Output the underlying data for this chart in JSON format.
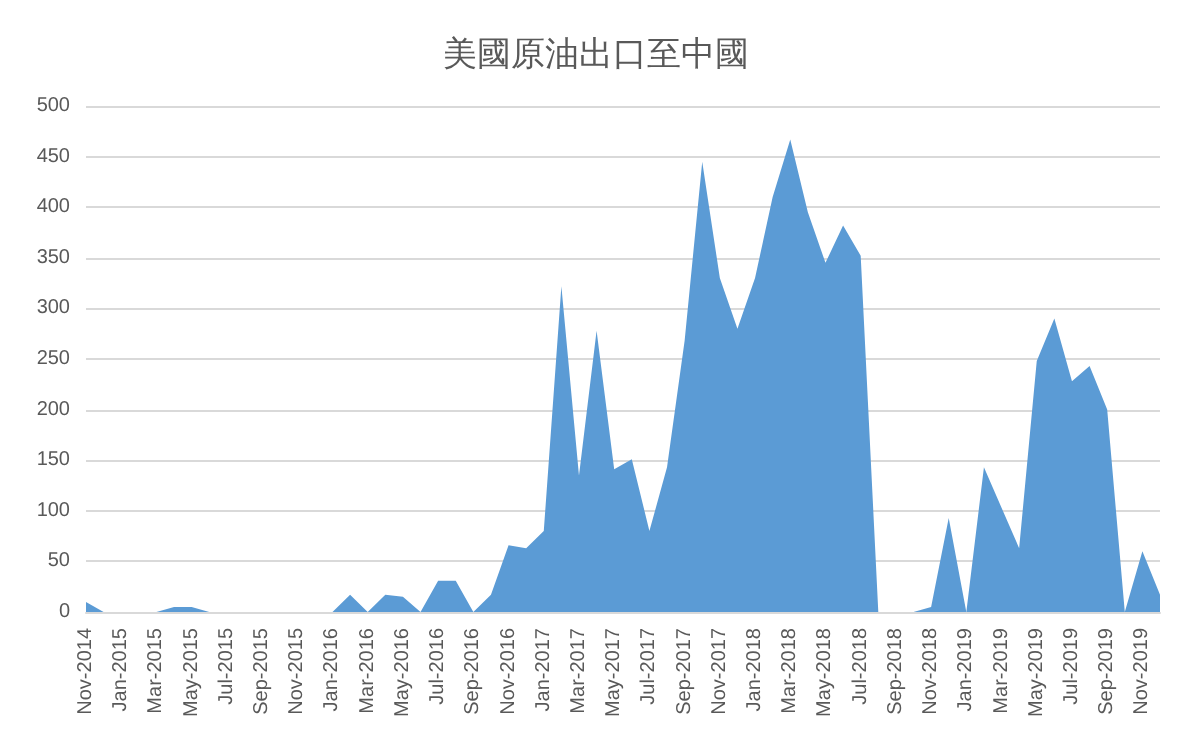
{
  "chart_data": {
    "type": "area",
    "title": "美國原油出口至中國",
    "categories": [
      "Nov-2014",
      null,
      "Jan-2015",
      null,
      "Mar-2015",
      null,
      "May-2015",
      null,
      "Jul-2015",
      null,
      "Sep-2015",
      null,
      "Nov-2015",
      null,
      "Jan-2016",
      null,
      "Mar-2016",
      null,
      "May-2016",
      null,
      "Jul-2016",
      null,
      "Sep-2016",
      null,
      "Nov-2016",
      null,
      "Jan-2017",
      null,
      "Mar-2017",
      null,
      "May-2017",
      null,
      "Jul-2017",
      null,
      "Sep-2017",
      null,
      "Nov-2017",
      null,
      "Jan-2018",
      null,
      "Mar-2018",
      null,
      "May-2018",
      null,
      "Jul-2018",
      null,
      "Sep-2018",
      null,
      "Nov-2018",
      null,
      "Jan-2019",
      null,
      "Mar-2019",
      null,
      "May-2019",
      null,
      "Jul-2019",
      null,
      "Sep-2019",
      null,
      "Nov-2019",
      null
    ],
    "values": [
      10,
      0,
      0,
      0,
      0,
      5,
      5,
      0,
      0,
      0,
      0,
      0,
      0,
      0,
      0,
      17,
      0,
      17,
      15,
      0,
      31,
      31,
      0,
      17,
      66,
      63,
      80,
      322,
      135,
      278,
      141,
      151,
      80,
      143,
      268,
      445,
      330,
      280,
      330,
      410,
      467,
      395,
      345,
      382,
      352,
      0,
      0,
      0,
      5,
      93,
      0,
      143,
      103,
      63,
      248,
      290,
      228,
      243,
      200,
      0,
      60,
      17
    ],
    "color": "#5b9bd5",
    "ylim": [
      0,
      500
    ],
    "yticks": [
      0,
      50,
      100,
      150,
      200,
      250,
      300,
      350,
      400,
      450,
      500
    ],
    "grid": "y"
  }
}
